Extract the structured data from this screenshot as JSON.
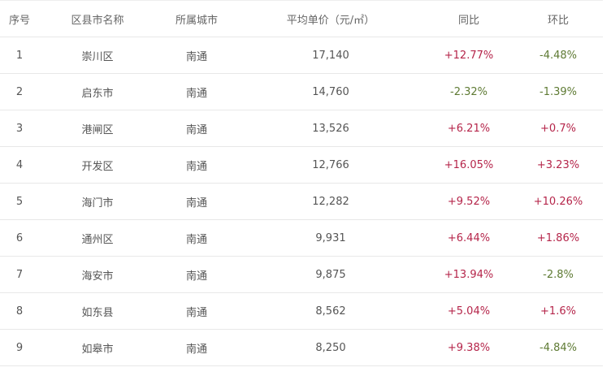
{
  "headers": [
    "序号",
    "区县市名称",
    "所属城市",
    "平均单价（元/㎡）",
    "同比",
    "环比"
  ],
  "rows": [
    [
      "1",
      "崇川区",
      "南通",
      "17,140",
      "+12.77%",
      "-4.48%"
    ],
    [
      "2",
      "启东市",
      "南通",
      "14,760",
      "-2.32%",
      "-1.39%"
    ],
    [
      "3",
      "港闸区",
      "南通",
      "13,526",
      "+6.21%",
      "+0.7%"
    ],
    [
      "4",
      "开发区",
      "南通",
      "12,766",
      "+16.05%",
      "+3.23%"
    ],
    [
      "5",
      "海门市",
      "南通",
      "12,282",
      "+9.52%",
      "+10.26%"
    ],
    [
      "6",
      "通州区",
      "南通",
      "9,931",
      "+6.44%",
      "+1.86%"
    ],
    [
      "7",
      "海安市",
      "南通",
      "9,875",
      "+13.94%",
      "-2.8%"
    ],
    [
      "8",
      "如东县",
      "南通",
      "8,562",
      "+5.04%",
      "+1.6%"
    ],
    [
      "9",
      "如皋市",
      "南通",
      "8,250",
      "+9.38%",
      "-4.84%"
    ]
  ],
  "colors": {
    "increase": "#b5254a",
    "decrease": "#5e7a33"
  }
}
